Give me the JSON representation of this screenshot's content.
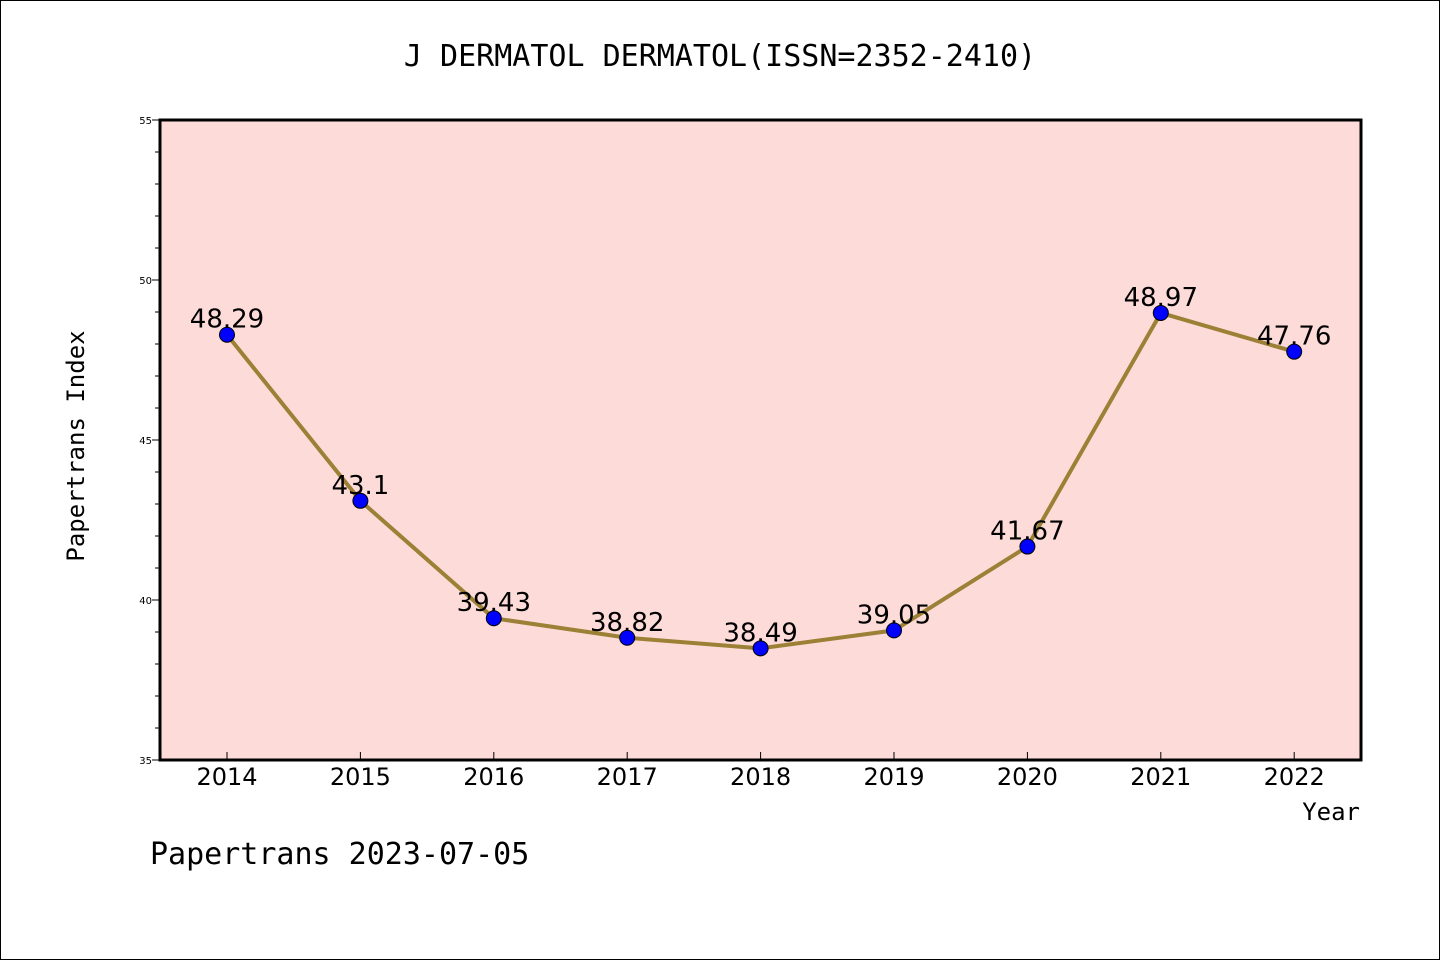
{
  "chart_data": {
    "type": "line",
    "title": "J DERMATOL DERMATOL(ISSN=2352-2410)",
    "xlabel": "Year",
    "ylabel": "Papertrans Index",
    "categories": [
      "2014",
      "2015",
      "2016",
      "2017",
      "2018",
      "2019",
      "2020",
      "2021",
      "2022"
    ],
    "series": [
      {
        "values": [
          48.29,
          43.1,
          39.43,
          38.82,
          38.49,
          39.05,
          41.67,
          48.97,
          47.76
        ]
      }
    ],
    "data_labels": [
      "48.29",
      "43.1",
      "39.43",
      "38.82",
      "38.49",
      "39.05",
      "41.67",
      "48.97",
      "47.76"
    ],
    "ylim": [
      35,
      55
    ],
    "yticks": [
      "35",
      "40",
      "45",
      "50",
      "55"
    ],
    "grid": false,
    "colors": {
      "plot_background": "#fddbd8",
      "line": "#9b8035",
      "marker": "#0000ff"
    }
  },
  "footer": "Papertrans 2023-07-05"
}
